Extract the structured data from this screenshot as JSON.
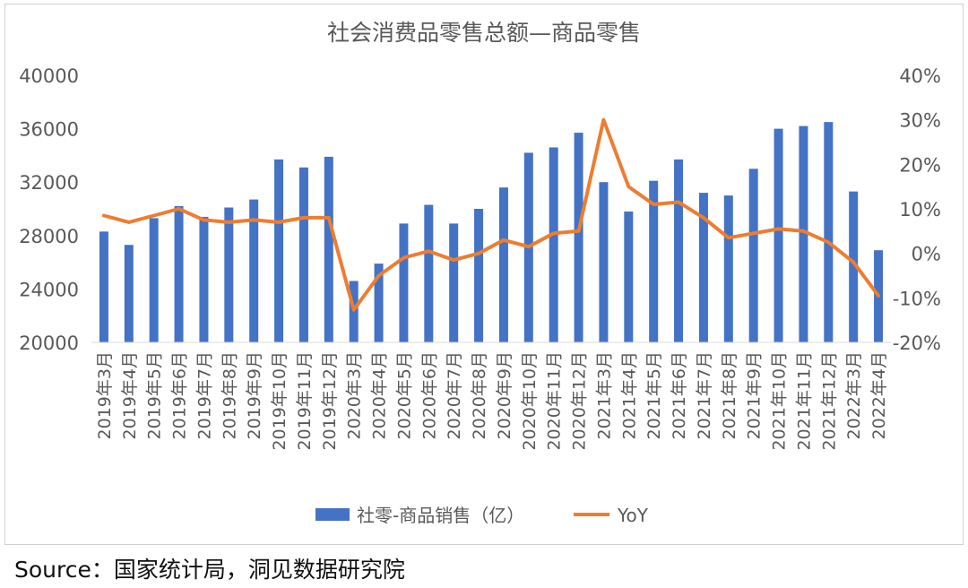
{
  "chart_data": {
    "type": "bar",
    "title": "社会消费品零售总额—商品零售",
    "categories": [
      "2019年3月",
      "2019年4月",
      "2019年5月",
      "2019年6月",
      "2019年7月",
      "2019年8月",
      "2019年9月",
      "2019年10月",
      "2019年11月",
      "2019年12月",
      "2020年3月",
      "2020年4月",
      "2020年5月",
      "2020年6月",
      "2020年7月",
      "2020年8月",
      "2020年9月",
      "2020年10月",
      "2020年11月",
      "2020年12月",
      "2021年3月",
      "2021年4月",
      "2021年5月",
      "2021年6月",
      "2021年7月",
      "2021年8月",
      "2021年9月",
      "2021年10月",
      "2021年11月",
      "2021年12月",
      "2022年3月",
      "2022年4月"
    ],
    "series": [
      {
        "name": "社零-商品销售（亿）",
        "type": "bar",
        "axis": "left",
        "color": "#4472C4",
        "values": [
          28300,
          27300,
          29300,
          30200,
          29400,
          30100,
          30700,
          33700,
          33100,
          33900,
          24600,
          25900,
          28900,
          30300,
          28900,
          30000,
          31600,
          34200,
          34600,
          35700,
          32000,
          29800,
          32100,
          33700,
          31200,
          31000,
          33000,
          36000,
          36200,
          36500,
          31300,
          26900
        ]
      },
      {
        "name": "YoY",
        "type": "line",
        "axis": "right",
        "color": "#ED7D31",
        "values": [
          8.5,
          7.0,
          8.5,
          10.0,
          7.5,
          7.0,
          7.5,
          7.0,
          8.0,
          8.0,
          -12.7,
          -5.0,
          -1.0,
          0.5,
          -1.5,
          0.0,
          3.0,
          1.5,
          4.5,
          5.0,
          30.0,
          15.0,
          11.0,
          11.5,
          8.0,
          3.5,
          4.5,
          5.5,
          5.0,
          2.5,
          -2.0,
          -9.5
        ]
      }
    ],
    "y_left": {
      "range": [
        20000,
        40000
      ],
      "ticks": [
        "20000",
        "24000",
        "28000",
        "32000",
        "36000",
        "40000"
      ]
    },
    "y_right": {
      "range": [
        -20,
        40
      ],
      "ticks": [
        "-20%",
        "-10%",
        "0%",
        "10%",
        "20%",
        "30%",
        "40%"
      ]
    },
    "grid": false,
    "legend_position": "bottom"
  },
  "legend": {
    "bar_label": "社零-商品销售（亿）",
    "line_label": "YoY"
  },
  "source_text": "Source：国家统计局，洞见数据研究院"
}
